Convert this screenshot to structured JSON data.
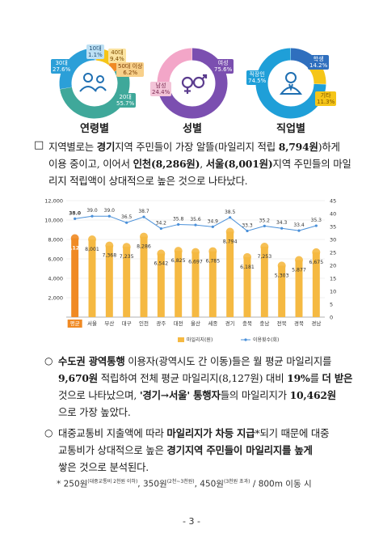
{
  "donuts": [
    {
      "label": "연령별",
      "colors": [
        "#2b9fd8",
        "#8fc2e6",
        "#f5c518",
        "#e67e22",
        "#f08a24",
        "#3fa89a"
      ],
      "segments": [
        {
          "name": "10대",
          "value": 1.1
        },
        {
          "name": "40대",
          "value": 9.4
        },
        {
          "name": "50대 이상",
          "value": 6.2
        },
        {
          "name": "20대",
          "value": 55.7
        },
        {
          "name": "30대",
          "value": 27.6
        }
      ],
      "callouts": [
        {
          "line1": "10대",
          "line2": "1.1%"
        },
        {
          "line1": "40대",
          "line2": "9.4%"
        },
        {
          "line1": "50대 이상",
          "line2": "6.2%"
        },
        {
          "line1": "20대",
          "line2": "55.7%"
        },
        {
          "line1": "30대",
          "line2": "27.6%"
        }
      ]
    },
    {
      "label": "성별",
      "segments": [
        {
          "name": "여성",
          "value": 75.6
        },
        {
          "name": "남성",
          "value": 24.4
        }
      ],
      "callouts": [
        {
          "line1": "여성",
          "line2": "75.6%"
        },
        {
          "line1": "남성",
          "line2": "24.4%"
        }
      ]
    },
    {
      "label": "직업별",
      "segments": [
        {
          "name": "학생",
          "value": 14.2
        },
        {
          "name": "기타",
          "value": 11.3
        },
        {
          "name": "직장인",
          "value": 74.5
        }
      ],
      "callouts": [
        {
          "line1": "학생",
          "line2": "14.2%"
        },
        {
          "line1": "기타",
          "line2": "11.3%"
        },
        {
          "line1": "직장인",
          "line2": "74.5%"
        }
      ]
    }
  ],
  "paragraph1": {
    "bullet": "□",
    "line1_a": "지역별로는 ",
    "line1_b": "경기",
    "line1_c": "지역 주민들이 가장 알뜰(마일리지 적립 ",
    "line1_d": "8,794원",
    "line1_e": ")하게",
    "line2_a": "이용 중이고, 이어서 ",
    "line2_b": "인천(8,286원)",
    "line2_c": ", ",
    "line2_d": "서울(8,001원)",
    "line2_e": "지역 주민들의 마일",
    "line3": "리지 적립액이 상대적으로 높은 것으로 나타났다."
  },
  "chart_data": {
    "type": "bar",
    "categories": [
      "평균",
      "서울",
      "부산",
      "대구",
      "인천",
      "광주",
      "대전",
      "울산",
      "세종",
      "경기",
      "충북",
      "충남",
      "전북",
      "경북",
      "경남"
    ],
    "series": [
      {
        "name": "마일리지(원)",
        "type": "bar",
        "axis": "left",
        "values": [
          8127,
          8001,
          7368,
          7235,
          8286,
          6542,
          6825,
          6697,
          6785,
          8794,
          6181,
          7253,
          5303,
          5877,
          6675
        ],
        "labels": [
          "8,127",
          "8,001",
          "7,368",
          "7,235",
          "8,286",
          "6,542",
          "6,825",
          "6,697",
          "6,785",
          "8,794",
          "6,181",
          "7,253",
          "5,303",
          "5,877",
          "6,675"
        ]
      },
      {
        "name": "이용횟수(회)",
        "type": "line",
        "axis": "right",
        "values": [
          38.0,
          39.0,
          39.0,
          36.5,
          38.7,
          34.2,
          35.8,
          35.6,
          34.9,
          38.5,
          33.3,
          35.2,
          34.3,
          33.4,
          35.3
        ],
        "labels": [
          "38.0",
          "39.0",
          "39.0",
          "36.5",
          "38.7",
          "34.2",
          "35.8",
          "35.6",
          "34.9",
          "38.5",
          "33.3",
          "35.2",
          "34.3",
          "33.4",
          "35.3"
        ]
      }
    ],
    "yticks_left": [
      "2,000",
      "4,000",
      "6,000",
      "8,000",
      "10,000",
      "12,000"
    ],
    "yticks_right": [
      "0",
      "5",
      "10",
      "15",
      "20",
      "25",
      "30",
      "35",
      "40",
      "45"
    ],
    "ylim_left": [
      0,
      12000
    ],
    "ylim_right": [
      0,
      45
    ],
    "legend_bar": "마일리지(원)",
    "legend_line": "이용횟수(회)",
    "legend_position": "bottom",
    "grid": true,
    "colors": {
      "bar": "#f5b942",
      "bar_highlight": "#f08a24",
      "line": "#4a90d9",
      "label_box": "#ffffff"
    }
  },
  "paragraph2": {
    "bullet": "○",
    "l1_a": "수도권 ",
    "l1_b": "광역통행",
    "l1_c": " 이용자(광역시도 간 이동)들은 월 평균 마일리지를",
    "l2_a": "9,670원",
    "l2_b": " 적립하여 전체 평균 마일리지(8,127원) 대비 ",
    "l2_c": "19%",
    "l2_d": "를 ",
    "l2_e": "더 받은",
    "l3_a": "것으로 나타났으며, ",
    "l3_b": "'경기→서울' 통행자",
    "l3_c": "들의 마일리지가 ",
    "l3_d": "10,462원",
    "l4": "으로 가장 높았다."
  },
  "paragraph3": {
    "bullet": "○",
    "l1_a": "대중교통비 지출액에 따라 ",
    "l1_b": "마일리지가 차등 지급",
    "l1_c": "*되기 때문에 대중",
    "l2_a": "교통비가 상대적으로 높은 ",
    "l2_b": "경기지역 주민들이 마일리지를 높게",
    "l3": "쌓은 것으로 분석된다."
  },
  "footnote": {
    "star": "*",
    "a": " 250원",
    "a_sup": "(대중교통비 2천원 이하)",
    "b": ", 350원",
    "b_sup": "(2천~3천원)",
    "c": ", 450원",
    "c_sup": "(3천원 초과)",
    "d": " / 800m 이동 시"
  },
  "page_number": "- 3 -"
}
